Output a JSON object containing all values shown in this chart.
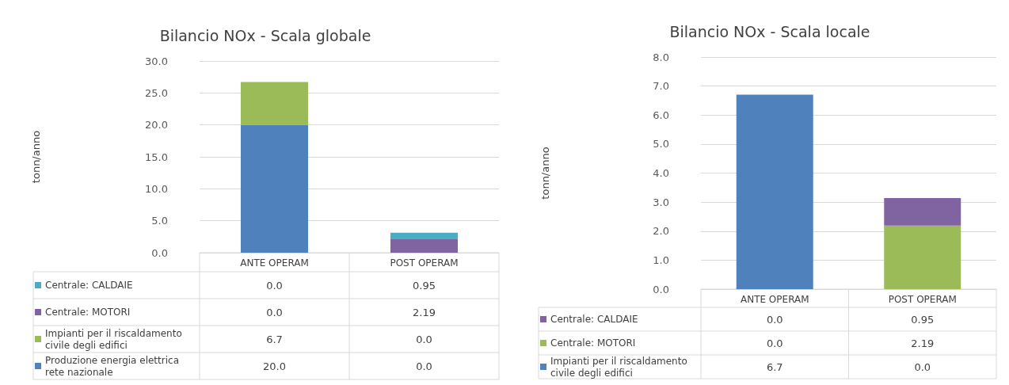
{
  "chart_data": [
    {
      "type": "bar",
      "title": "Bilancio NOx - Scala globale",
      "ylabel": "tonn/anno",
      "categories": [
        "ANTE OPERAM",
        "POST OPERAM"
      ],
      "stacked": true,
      "grid": "y",
      "legend": "bottom",
      "ylim": [
        0,
        30
      ],
      "yticks": [
        {
          "value": 0,
          "label": "0.0"
        },
        {
          "value": 5,
          "label": "5.0"
        },
        {
          "value": 10,
          "label": "10.0"
        },
        {
          "value": 15,
          "label": "15.0"
        },
        {
          "value": 20,
          "label": "20.0"
        },
        {
          "value": 25,
          "label": "25.0"
        },
        {
          "value": 30,
          "label": "30.0"
        }
      ],
      "series": [
        {
          "name": "Produzione energia elettrica rete nazionale",
          "color": "#4f81bd",
          "values": [
            20,
            0
          ],
          "value_labels": [
            "20.0",
            "0.0"
          ]
        },
        {
          "name": "Impianti per il riscaldamento civile degli edifici",
          "color": "#9bbb59",
          "values": [
            6.7,
            0
          ],
          "value_labels": [
            "6.7",
            "0.0"
          ]
        },
        {
          "name": "Centrale: MOTORI",
          "color": "#8064a2",
          "values": [
            0,
            2.19
          ],
          "value_labels": [
            "0.0",
            "2.19"
          ]
        },
        {
          "name": "Centrale: CALDAIE",
          "color": "#4bacc6",
          "values": [
            0,
            0.95
          ],
          "value_labels": [
            "0.0",
            "0.95"
          ]
        }
      ]
    },
    {
      "type": "bar",
      "title": "Bilancio NOx - Scala locale",
      "ylabel": "tonn/anno",
      "categories": [
        "ANTE OPERAM",
        "POST OPERAM"
      ],
      "stacked": true,
      "grid": "y",
      "legend": "bottom",
      "ylim": [
        0,
        8
      ],
      "yticks": [
        {
          "value": 0,
          "label": "0.0"
        },
        {
          "value": 1,
          "label": "1.0"
        },
        {
          "value": 2,
          "label": "2.0"
        },
        {
          "value": 3,
          "label": "3.0"
        },
        {
          "value": 4,
          "label": "4.0"
        },
        {
          "value": 5,
          "label": "5.0"
        },
        {
          "value": 6,
          "label": "6.0"
        },
        {
          "value": 7,
          "label": "7.0"
        },
        {
          "value": 8,
          "label": "8.0"
        }
      ],
      "series": [
        {
          "name": "Impianti per il riscaldamento civile degli edifici",
          "color": "#4f81bd",
          "values": [
            6.7,
            0
          ],
          "value_labels": [
            "6.7",
            "0.0"
          ]
        },
        {
          "name": "Centrale: MOTORI",
          "color": "#9bbb59",
          "values": [
            0,
            2.19
          ],
          "value_labels": [
            "0.0",
            "2.19"
          ]
        },
        {
          "name": "Centrale: CALDAIE",
          "color": "#8064a2",
          "values": [
            0,
            0.95
          ],
          "value_labels": [
            "0.0",
            "0.95"
          ]
        }
      ]
    }
  ]
}
